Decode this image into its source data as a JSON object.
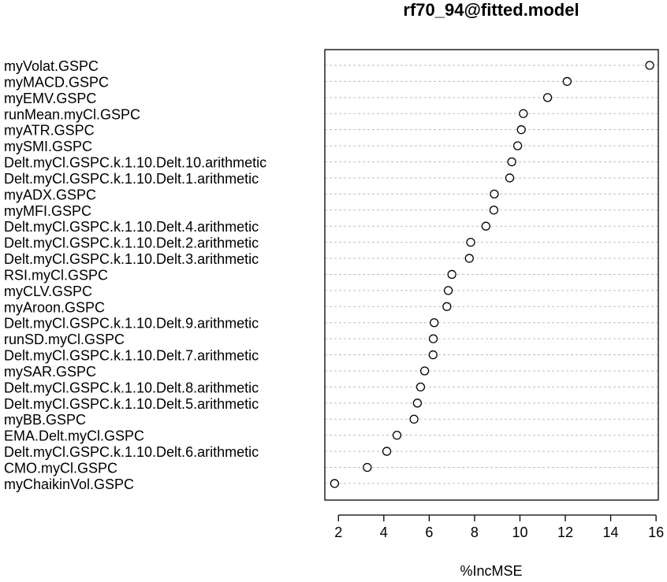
{
  "chart_data": {
    "type": "scatter",
    "title": "rf70_94@fitted.model",
    "xlabel": "%IncMSE",
    "ylabel": "",
    "xlim": [
      1.4,
      16.1
    ],
    "xticks": [
      2,
      4,
      6,
      8,
      10,
      12,
      14,
      16
    ],
    "xtick_labels": [
      "2",
      "4",
      "6",
      "8",
      "10",
      "12",
      "14",
      "16"
    ],
    "grid": "horizontal dotted lines",
    "categories": [
      "myVolat.GSPC",
      "myMACD.GSPC",
      "myEMV.GSPC",
      "runMean.myCl.GSPC",
      "myATR.GSPC",
      "mySMI.GSPC",
      "Delt.myCl.GSPC.k.1.10.Delt.10.arithmetic",
      "Delt.myCl.GSPC.k.1.10.Delt.1.arithmetic",
      "myADX.GSPC",
      "myMFI.GSPC",
      "Delt.myCl.GSPC.k.1.10.Delt.4.arithmetic",
      "Delt.myCl.GSPC.k.1.10.Delt.2.arithmetic",
      "Delt.myCl.GSPC.k.1.10.Delt.3.arithmetic",
      "RSI.myCl.GSPC",
      "myCLV.GSPC",
      "myAroon.GSPC",
      "Delt.myCl.GSPC.k.1.10.Delt.9.arithmetic",
      "runSD.myCl.GSPC",
      "Delt.myCl.GSPC.k.1.10.Delt.7.arithmetic",
      "mySAR.GSPC",
      "Delt.myCl.GSPC.k.1.10.Delt.8.arithmetic",
      "Delt.myCl.GSPC.k.1.10.Delt.5.arithmetic",
      "myBB.GSPC",
      "EMA.Delt.myCl.GSPC",
      "Delt.myCl.GSPC.k.1.10.Delt.6.arithmetic",
      "CMO.myCl.GSPC",
      "myChaikinVol.GSPC"
    ],
    "values": [
      15.72,
      12.08,
      11.22,
      10.15,
      10.06,
      9.9,
      9.64,
      9.55,
      8.87,
      8.85,
      8.5,
      7.83,
      7.77,
      7.0,
      6.84,
      6.78,
      6.22,
      6.18,
      6.17,
      5.8,
      5.62,
      5.48,
      5.33,
      4.58,
      4.13,
      3.27,
      1.83
    ],
    "marker": "open circle",
    "colors": {
      "grid": "#bdbdbd",
      "marker": "#000000",
      "axis": "#000000"
    }
  }
}
